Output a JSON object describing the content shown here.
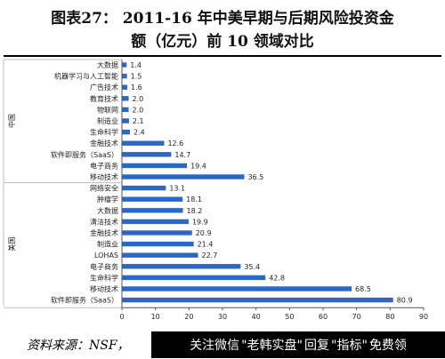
{
  "title": {
    "line1": "图表27：  2011-16 年中美早期与后期风险投资金",
    "line2": "额（亿元）前 10 领域对比"
  },
  "source": "资料来源：NSF，",
  "banner": {
    "part1": "关注微信",
    "part2": "\"老韩实盘\"",
    "part3": "回复",
    "part4": "\"指标\"",
    "part5": "免费领"
  },
  "colors": {
    "bar": "#2b67c4",
    "axis": "#555555",
    "text": "#1f1f1f"
  },
  "chart_data": {
    "type": "bar",
    "orientation": "horizontal",
    "groups": [
      {
        "name": "中国",
        "categories": [
          "大数据",
          "机器学习与人工智能",
          "广告技术",
          "教育技术",
          "物联网",
          "制造业",
          "生命科学",
          "金融技术",
          "软件即服务（SaaS）",
          "电子商务",
          "移动技术"
        ],
        "values": [
          1.4,
          1.5,
          1.6,
          2.0,
          2.0,
          2.1,
          2.4,
          12.6,
          14.7,
          19.4,
          36.5
        ]
      },
      {
        "name": "美国",
        "categories": [
          "网络安全",
          "肿瘤学",
          "大数据",
          "清洁技术",
          "金融技术",
          "制造业",
          "LOHAS",
          "电子商务",
          "生命科学",
          "移动技术",
          "软件即服务（SaaS）"
        ],
        "values": [
          13.1,
          18.1,
          18.2,
          19.9,
          20.9,
          21.4,
          22.7,
          35.4,
          42.8,
          68.5,
          80.9
        ]
      }
    ],
    "xlim": [
      0,
      90
    ],
    "xticks": [
      0,
      10,
      20,
      30,
      40,
      50,
      60,
      70,
      80,
      90
    ],
    "grid": false
  }
}
